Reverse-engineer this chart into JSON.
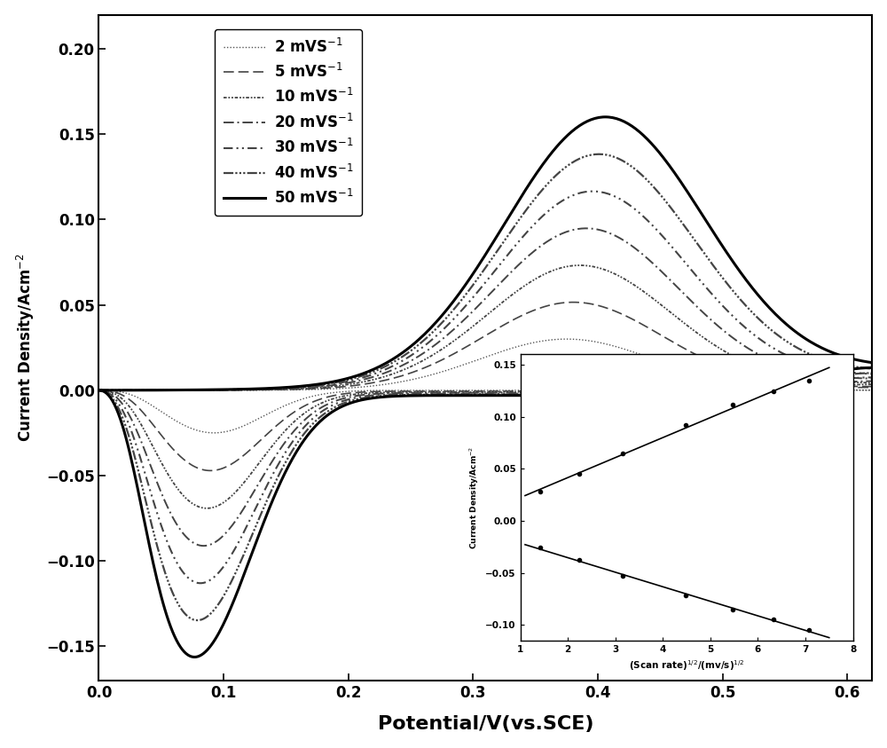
{
  "title": "",
  "xlabel": "Potential/V(vs.SCE)",
  "ylabel": "Current Density/Acm$^{-2}$",
  "xlim": [
    0.0,
    0.62
  ],
  "ylim": [
    -0.17,
    0.22
  ],
  "xticks": [
    0.0,
    0.1,
    0.2,
    0.3,
    0.4,
    0.5,
    0.6
  ],
  "yticks": [
    -0.15,
    -0.1,
    -0.05,
    0.0,
    0.05,
    0.1,
    0.15,
    0.2
  ],
  "scan_rate_labels": [
    "2 mVS$^{-1}$",
    "5 mVS$^{-1}$",
    "10 mVS$^{-1}$",
    "20 mVS$^{-1}$",
    "30 mVS$^{-1}$",
    "40 mVS$^{-1}$",
    "50 mVS$^{-1}$"
  ],
  "line_widths": [
    1.0,
    1.2,
    1.3,
    1.4,
    1.5,
    1.6,
    2.2
  ],
  "inset": {
    "xlim": [
      1,
      8
    ],
    "ylim": [
      -0.115,
      0.16
    ],
    "xticks": [
      1,
      2,
      3,
      4,
      5,
      6,
      7,
      8
    ],
    "yticks": [
      -0.1,
      -0.05,
      0.0,
      0.05,
      0.1,
      0.15
    ],
    "xlabel": "(Scan rate)$^{1/2}$/(mv/s)$^{1/2}$",
    "ylabel": "Current Density/Acm$^{-2}$",
    "anodic_x": [
      1.414,
      2.236,
      3.162,
      4.472,
      5.477,
      6.325,
      7.071
    ],
    "anodic_y": [
      0.028,
      0.045,
      0.065,
      0.092,
      0.112,
      0.124,
      0.135
    ],
    "cathodic_x": [
      1.414,
      2.236,
      3.162,
      4.472,
      5.477,
      6.325,
      7.071
    ],
    "cathodic_y": [
      -0.026,
      -0.038,
      -0.053,
      -0.072,
      -0.085,
      -0.095,
      -0.105
    ]
  }
}
